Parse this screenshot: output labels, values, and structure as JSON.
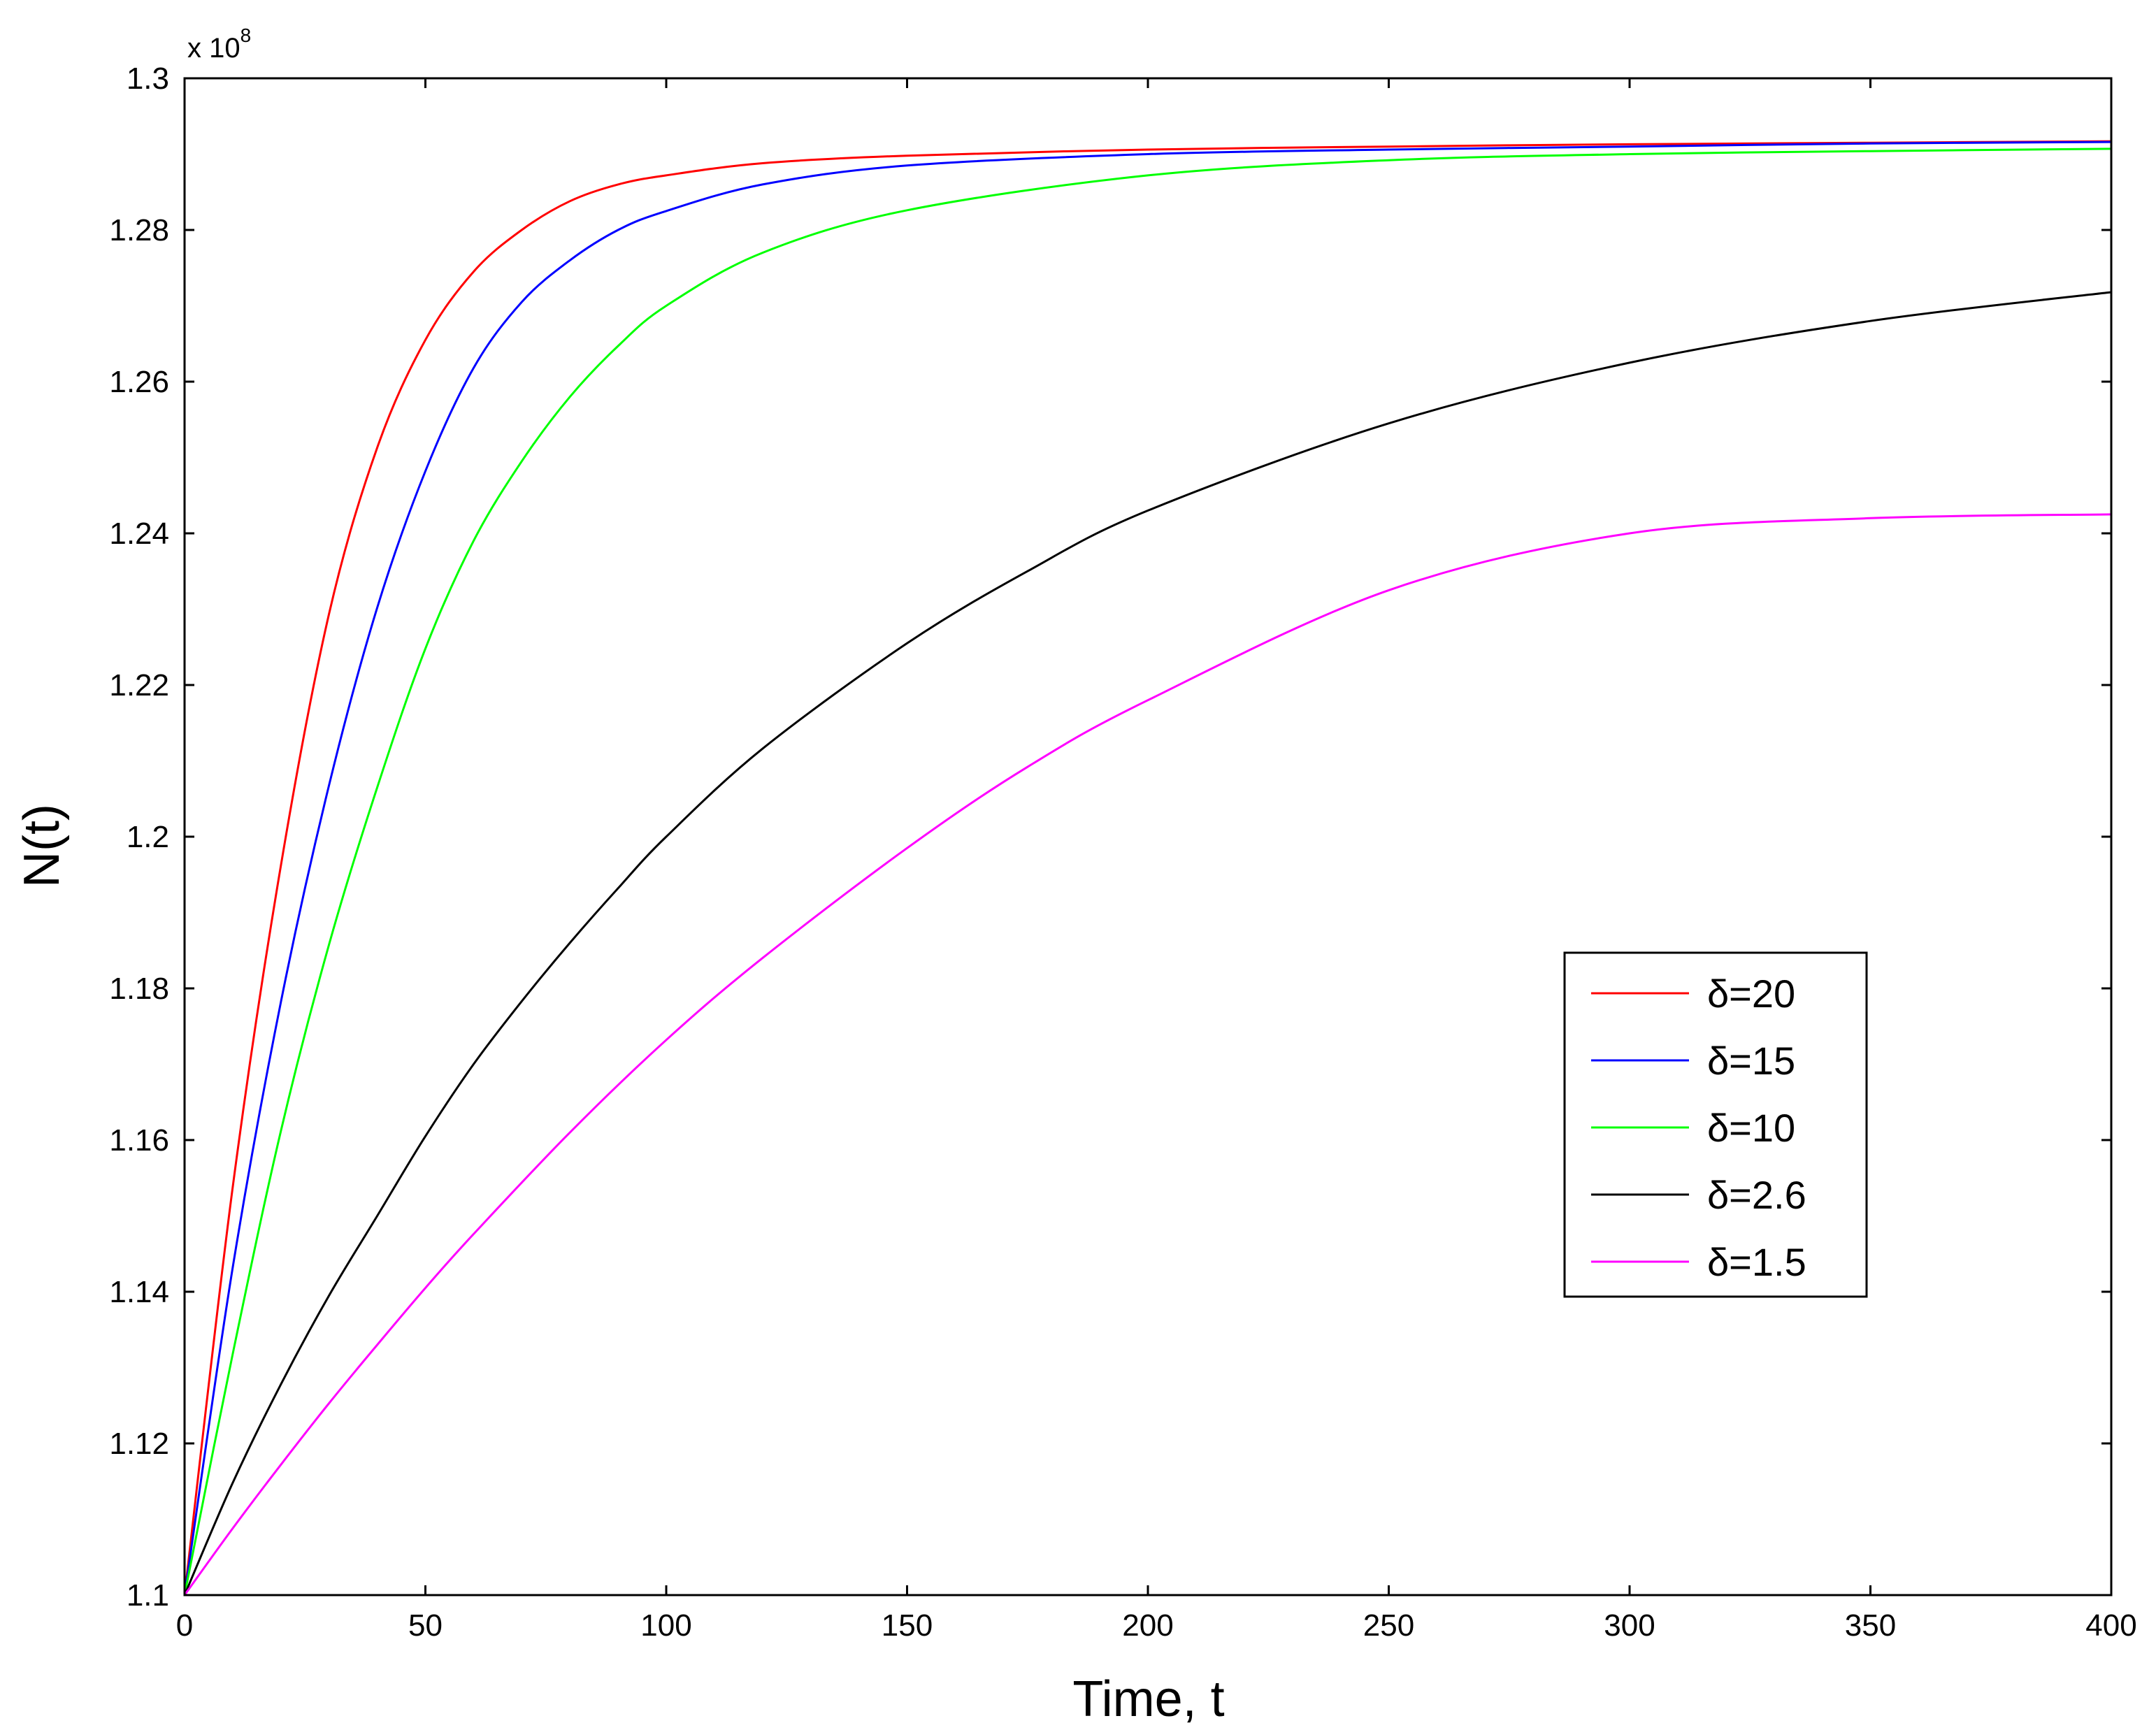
{
  "chart_data": {
    "type": "line",
    "title": "",
    "xlabel": "Time, t",
    "ylabel": "N(t)",
    "y_multiplier_label": {
      "prefix": "x 10",
      "exponent": "8"
    },
    "xlim": [
      0,
      400
    ],
    "ylim": [
      1.1,
      1.3
    ],
    "x_ticks": [
      0,
      50,
      100,
      150,
      200,
      250,
      300,
      350,
      400
    ],
    "x_tick_labels": [
      "0",
      "50",
      "100",
      "150",
      "200",
      "250",
      "300",
      "350",
      "400"
    ],
    "y_ticks": [
      1.1,
      1.12,
      1.14,
      1.16,
      1.18,
      1.2,
      1.22,
      1.24,
      1.26,
      1.28,
      1.3
    ],
    "y_tick_labels": [
      "1.1",
      "1.12",
      "1.14",
      "1.16",
      "1.18",
      "1.2",
      "1.22",
      "1.24",
      "1.26",
      "1.28",
      "1.3"
    ],
    "grid": false,
    "legend_position": "center-right",
    "series": [
      {
        "name": "δ=20",
        "color": "#ff0000",
        "x": [
          0,
          10,
          20,
          30,
          40,
          50,
          60,
          70,
          80,
          90,
          100,
          120,
          150,
          200,
          250,
          300,
          350,
          400
        ],
        "y": [
          1.1,
          1.1538,
          1.1962,
          1.2294,
          1.2513,
          1.2655,
          1.2745,
          1.28,
          1.2838,
          1.286,
          1.2872,
          1.2888,
          1.2898,
          1.2906,
          1.291,
          1.2913,
          1.2915,
          1.2917
        ]
      },
      {
        "name": "δ=15",
        "color": "#0000ff",
        "x": [
          0,
          10,
          20,
          30,
          40,
          50,
          60,
          70,
          80,
          90,
          100,
          120,
          150,
          200,
          250,
          300,
          350,
          400
        ],
        "y": [
          1.1,
          1.1432,
          1.1782,
          1.2068,
          1.2302,
          1.2482,
          1.2618,
          1.2705,
          1.276,
          1.28,
          1.2825,
          1.286,
          1.2885,
          1.29,
          1.2906,
          1.291,
          1.2914,
          1.2916
        ]
      },
      {
        "name": "δ=10",
        "color": "#00ff00",
        "x": [
          0,
          10,
          20,
          30,
          40,
          50,
          60,
          70,
          80,
          90,
          100,
          120,
          150,
          200,
          250,
          300,
          350,
          400
        ],
        "y": [
          1.1,
          1.1318,
          1.1612,
          1.1858,
          1.2065,
          1.2248,
          1.239,
          1.2495,
          1.258,
          1.2647,
          1.27,
          1.277,
          1.2826,
          1.2872,
          1.2892,
          1.29,
          1.2904,
          1.2907
        ]
      },
      {
        "name": "δ=2.6",
        "color": "#000000",
        "x": [
          0,
          10,
          20,
          30,
          40,
          50,
          60,
          70,
          80,
          90,
          100,
          120,
          150,
          175,
          200,
          250,
          300,
          350,
          400
        ],
        "y": [
          1.1,
          1.1148,
          1.1278,
          1.1395,
          1.15,
          1.1605,
          1.17,
          1.1783,
          1.186,
          1.1932,
          1.2,
          1.2116,
          1.2255,
          1.235,
          1.243,
          1.2545,
          1.2625,
          1.268,
          1.2718
        ]
      },
      {
        "name": "δ=1.5",
        "color": "#ff00ff",
        "x": [
          0,
          10,
          20,
          30,
          40,
          50,
          60,
          80,
          100,
          120,
          150,
          175,
          200,
          250,
          300,
          350,
          400
        ],
        "y": [
          1.1,
          1.1088,
          1.1172,
          1.1253,
          1.133,
          1.1405,
          1.1476,
          1.161,
          1.1732,
          1.184,
          1.1985,
          1.2092,
          1.218,
          1.2325,
          1.24,
          1.242,
          1.2425
        ]
      }
    ]
  }
}
